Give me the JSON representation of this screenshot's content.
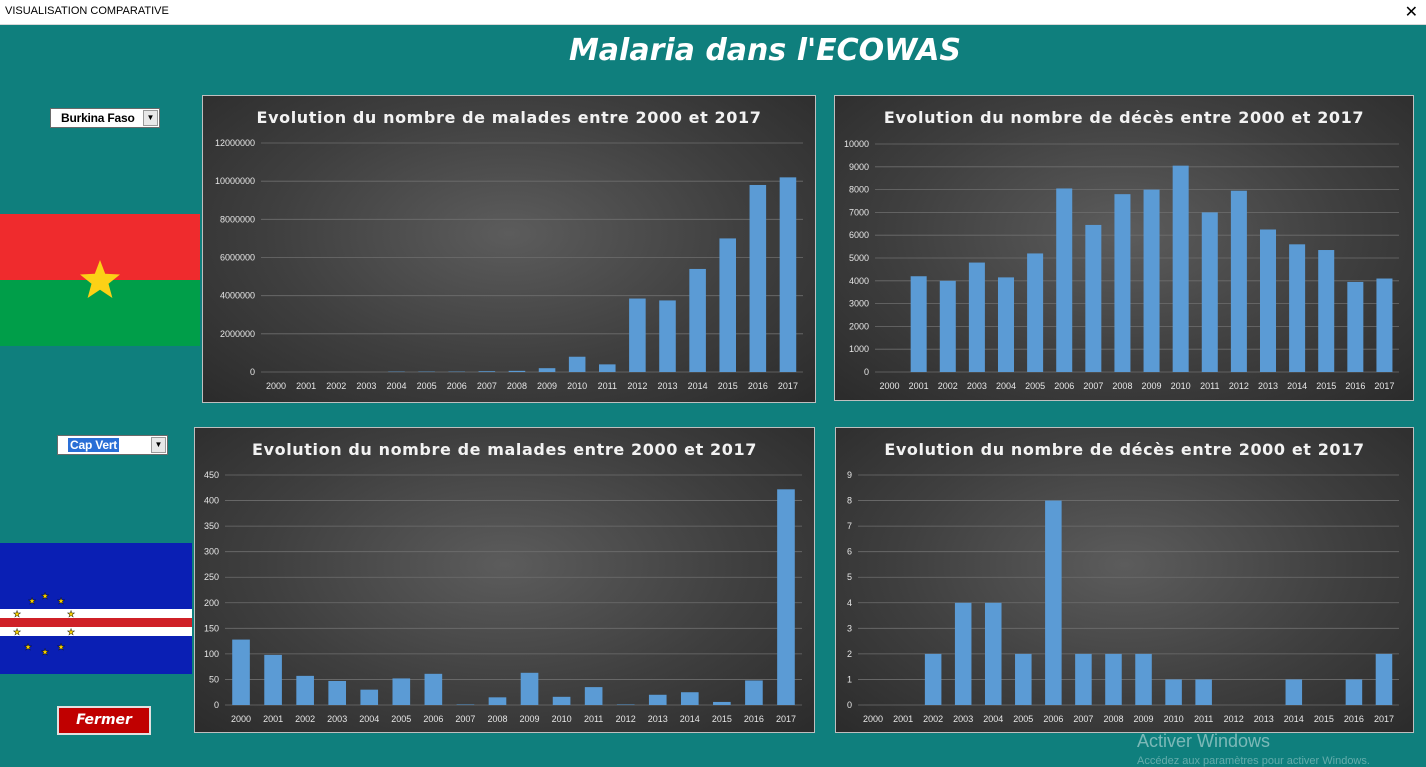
{
  "window": {
    "title": "VISUALISATION COMPARATIVE",
    "close_glyph": "✕"
  },
  "main_title": "Malaria dans l'ECOWAS",
  "country1": {
    "selected": "Burkina Faso",
    "flag": "burkina-faso-flag"
  },
  "country2": {
    "selected": "Cap Vert",
    "flag": "cap-vert-flag"
  },
  "close_button": {
    "label": "Fermer"
  },
  "watermark": {
    "line1": "Activer Windows",
    "line2": "Accédez aux paramètres pour activer Windows."
  },
  "colors": {
    "background": "#0f7f7d",
    "bar": "#5b9bd5",
    "button": "#c00000"
  },
  "chart_data": [
    {
      "id": "chart-bf-malades",
      "type": "bar",
      "title": "Evolution du nombre de malades entre 2000 et 2017",
      "categories": [
        "2000",
        "2001",
        "2002",
        "2003",
        "2004",
        "2005",
        "2006",
        "2007",
        "2008",
        "2009",
        "2010",
        "2011",
        "2012",
        "2013",
        "2014",
        "2015",
        "2016",
        "2017"
      ],
      "values": [
        0,
        0,
        0,
        0,
        20000,
        20000,
        20000,
        40000,
        60000,
        200000,
        800000,
        400000,
        3850000,
        3750000,
        5400000,
        7000000,
        9800000,
        10200000
      ],
      "yticks": [
        "0",
        "2000000",
        "4000000",
        "6000000",
        "8000000",
        "10000000",
        "12000000"
      ],
      "ylim": [
        0,
        12000000
      ],
      "grid": true
    },
    {
      "id": "chart-bf-deces",
      "type": "bar",
      "title": "Evolution du nombre de décès entre 2000 et 2017",
      "categories": [
        "2000",
        "2001",
        "2002",
        "2003",
        "2004",
        "2005",
        "2006",
        "2007",
        "2008",
        "2009",
        "2010",
        "2011",
        "2012",
        "2013",
        "2014",
        "2015",
        "2016",
        "2017"
      ],
      "values": [
        0,
        4200,
        4000,
        4800,
        4150,
        5200,
        8050,
        6450,
        7800,
        8000,
        9050,
        7000,
        7950,
        6250,
        5600,
        5350,
        3950,
        4100
      ],
      "yticks": [
        "0",
        "1000",
        "2000",
        "3000",
        "4000",
        "5000",
        "6000",
        "7000",
        "8000",
        "9000",
        "10000"
      ],
      "ylim": [
        0,
        10000
      ],
      "grid": true
    },
    {
      "id": "chart-cv-malades",
      "type": "bar",
      "title": "Evolution du nombre de malades entre 2000 et 2017",
      "categories": [
        "2000",
        "2001",
        "2002",
        "2003",
        "2004",
        "2005",
        "2006",
        "2007",
        "2008",
        "2009",
        "2010",
        "2011",
        "2012",
        "2013",
        "2014",
        "2015",
        "2016",
        "2017"
      ],
      "values": [
        128,
        98,
        57,
        47,
        30,
        52,
        61,
        1,
        15,
        63,
        16,
        35,
        1,
        20,
        25,
        6,
        48,
        422
      ],
      "yticks": [
        "0",
        "50",
        "100",
        "150",
        "200",
        "250",
        "300",
        "350",
        "400",
        "450"
      ],
      "ylim": [
        0,
        450
      ],
      "grid": true
    },
    {
      "id": "chart-cv-deces",
      "type": "bar",
      "title": "Evolution du nombre de décès entre 2000 et 2017",
      "categories": [
        "2000",
        "2001",
        "2002",
        "2003",
        "2004",
        "2005",
        "2006",
        "2007",
        "2008",
        "2009",
        "2010",
        "2011",
        "2012",
        "2013",
        "2014",
        "2015",
        "2016",
        "2017"
      ],
      "values": [
        0,
        0,
        2,
        4,
        4,
        2,
        8,
        2,
        2,
        2,
        1,
        1,
        0,
        0,
        1,
        0,
        1,
        2
      ],
      "yticks": [
        "0",
        "1",
        "2",
        "3",
        "4",
        "5",
        "6",
        "7",
        "8",
        "9"
      ],
      "ylim": [
        0,
        9
      ],
      "grid": true
    }
  ]
}
